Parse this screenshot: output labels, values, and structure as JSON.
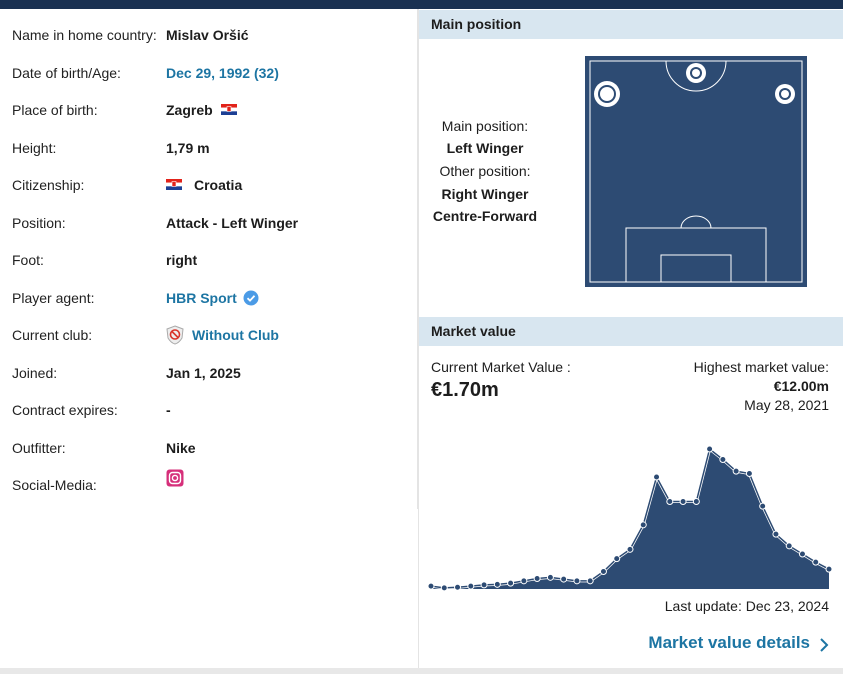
{
  "profile": {
    "rows": [
      {
        "label": "Name in home country:",
        "value": "Mislav Oršić"
      },
      {
        "label": "Date of birth/Age:",
        "value": "Dec 29, 1992 (32)"
      },
      {
        "label": "Place of birth:",
        "value": "Zagreb"
      },
      {
        "label": "Height:",
        "value": "1,79 m"
      },
      {
        "label": "Citizenship:",
        "value": "Croatia"
      },
      {
        "label": "Position:",
        "value": "Attack - Left Winger"
      },
      {
        "label": "Foot:",
        "value": "right"
      },
      {
        "label": "Player agent:",
        "value": "HBR Sport"
      },
      {
        "label": "Current club:",
        "value": "Without Club"
      },
      {
        "label": "Joined:",
        "value": "Jan 1, 2025"
      },
      {
        "label": "Contract expires:",
        "value": "-"
      },
      {
        "label": "Outfitter:",
        "value": "Nike"
      },
      {
        "label": "Social-Media:",
        "value": ""
      }
    ]
  },
  "position": {
    "title": "Main position",
    "main_label": "Main position:",
    "main": "Left Winger",
    "other_label": "Other position:",
    "other": [
      "Right Winger",
      "Centre-Forward"
    ]
  },
  "market_value": {
    "title": "Market value",
    "current_label": "Current Market Value :",
    "current": "€1.70m",
    "highest_label": "Highest market value:",
    "highest": "€12.00m",
    "highest_date": "May 28, 2021",
    "last_update": "Last update: Dec 23, 2024",
    "details_link": "Market value details",
    "chart": {
      "type": "area",
      "ylim": [
        0,
        12
      ],
      "values": [
        0.25,
        0.1,
        0.15,
        0.25,
        0.35,
        0.4,
        0.5,
        0.7,
        0.9,
        1.0,
        0.85,
        0.7,
        0.7,
        1.5,
        2.6,
        3.4,
        5.5,
        9.6,
        7.5,
        7.5,
        7.5,
        12.0,
        11.1,
        10.1,
        9.9,
        7.1,
        4.7,
        3.7,
        3.0,
        2.3,
        1.7
      ]
    }
  }
}
